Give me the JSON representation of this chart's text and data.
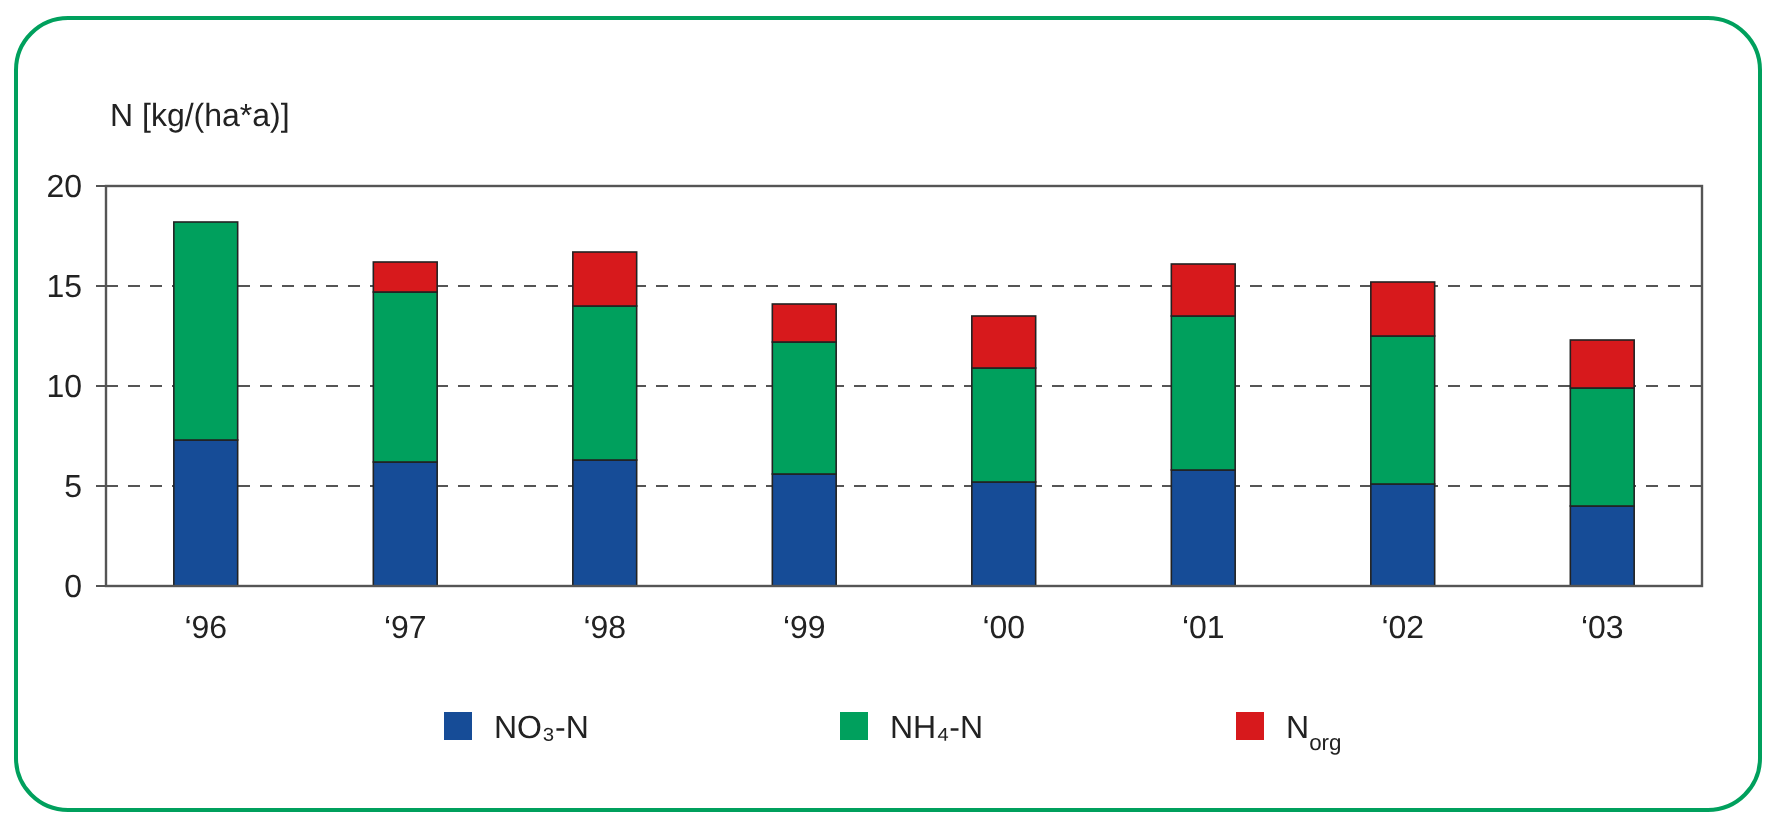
{
  "chart_data": {
    "type": "bar",
    "ylabel": "N [kg/(ha*a)]",
    "stacked": true,
    "categories": [
      "‘96",
      "‘97",
      "‘98",
      "‘99",
      "‘00",
      "‘01",
      "‘02",
      "‘03"
    ],
    "series": [
      {
        "name": "NO₃-N",
        "color": "#164c97",
        "values": [
          7.3,
          6.2,
          6.3,
          5.6,
          5.2,
          5.8,
          5.1,
          4.0
        ]
      },
      {
        "name": "NH₄-N",
        "color": "#00a05d",
        "values": [
          10.9,
          8.5,
          7.7,
          6.6,
          5.7,
          7.7,
          7.4,
          5.9
        ]
      },
      {
        "name": "N$_{org}$",
        "color": "#d7191c",
        "values": [
          0,
          1.5,
          2.7,
          1.9,
          2.6,
          2.6,
          2.7,
          2.4
        ]
      }
    ],
    "ylim": [
      0,
      20
    ],
    "yticks": [
      0,
      5,
      10,
      15,
      20
    ],
    "grid": "y",
    "legend": "bottom"
  }
}
